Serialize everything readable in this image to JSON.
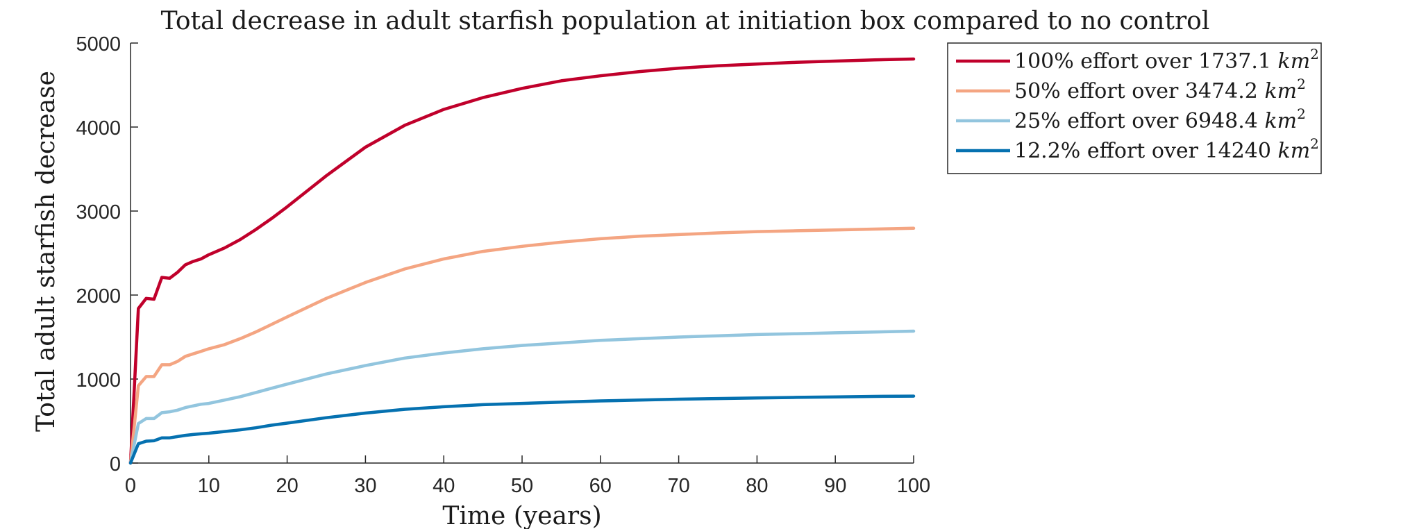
{
  "chart_data": {
    "type": "line",
    "title": "Total decrease in adult starfish population at initiation box compared to no control",
    "xlabel": "Time (years)",
    "ylabel": "Total adult starfish decrease",
    "xlim": [
      0,
      100
    ],
    "ylim": [
      0,
      5000
    ],
    "xticks": [
      0,
      10,
      20,
      30,
      40,
      50,
      60,
      70,
      80,
      90,
      100
    ],
    "yticks": [
      0,
      1000,
      2000,
      3000,
      4000,
      5000
    ],
    "xtick_labels": [
      "0",
      "10",
      "20",
      "30",
      "40",
      "50",
      "60",
      "70",
      "80",
      "90",
      "100"
    ],
    "ytick_labels": [
      "0",
      "1000",
      "2000",
      "3000",
      "4000",
      "5000"
    ],
    "grid": false,
    "legend_position": "outside-top-right",
    "x": [
      0,
      1,
      2,
      3,
      4,
      5,
      6,
      7,
      8,
      9,
      10,
      12,
      14,
      16,
      18,
      20,
      25,
      30,
      35,
      40,
      45,
      50,
      55,
      60,
      65,
      70,
      75,
      80,
      85,
      90,
      95,
      100
    ],
    "series": [
      {
        "name": "100% effort over 1737.1 km²",
        "legend_prefix": "100% effort over 1737.1 ",
        "legend_unit": "km",
        "legend_sup": "2",
        "color": "#c0002b",
        "values": [
          0,
          1840,
          1960,
          1950,
          2210,
          2200,
          2270,
          2360,
          2400,
          2430,
          2480,
          2560,
          2660,
          2780,
          2910,
          3050,
          3420,
          3760,
          4020,
          4210,
          4350,
          4460,
          4550,
          4610,
          4660,
          4700,
          4730,
          4750,
          4770,
          4785,
          4800,
          4810
        ]
      },
      {
        "name": "50% effort over 3474.2 km²",
        "legend_prefix": "50% effort over 3474.2 ",
        "legend_unit": "km",
        "legend_sup": "2",
        "color": "#f4a582",
        "values": [
          0,
          920,
          1030,
          1030,
          1170,
          1170,
          1210,
          1270,
          1300,
          1330,
          1360,
          1410,
          1480,
          1560,
          1650,
          1740,
          1960,
          2150,
          2310,
          2430,
          2520,
          2580,
          2630,
          2670,
          2700,
          2720,
          2740,
          2755,
          2765,
          2775,
          2785,
          2795
        ]
      },
      {
        "name": "25% effort over 6948.4 km²",
        "legend_prefix": "25% effort over 6948.4 ",
        "legend_unit": "km",
        "legend_sup": "2",
        "color": "#92c5de",
        "values": [
          0,
          470,
          530,
          530,
          600,
          610,
          630,
          660,
          680,
          700,
          710,
          750,
          790,
          840,
          890,
          940,
          1060,
          1160,
          1250,
          1310,
          1360,
          1400,
          1430,
          1460,
          1480,
          1500,
          1515,
          1530,
          1540,
          1550,
          1560,
          1570
        ]
      },
      {
        "name": "12.2% effort over 14240 km²",
        "legend_prefix": "12.2% effort over 14240 ",
        "legend_unit": "km",
        "legend_sup": "2",
        "color": "#0571b0",
        "values": [
          0,
          230,
          260,
          265,
          300,
          300,
          315,
          330,
          340,
          348,
          355,
          375,
          395,
          420,
          450,
          475,
          540,
          595,
          640,
          670,
          695,
          710,
          725,
          740,
          750,
          760,
          768,
          775,
          782,
          788,
          793,
          797
        ]
      }
    ]
  }
}
